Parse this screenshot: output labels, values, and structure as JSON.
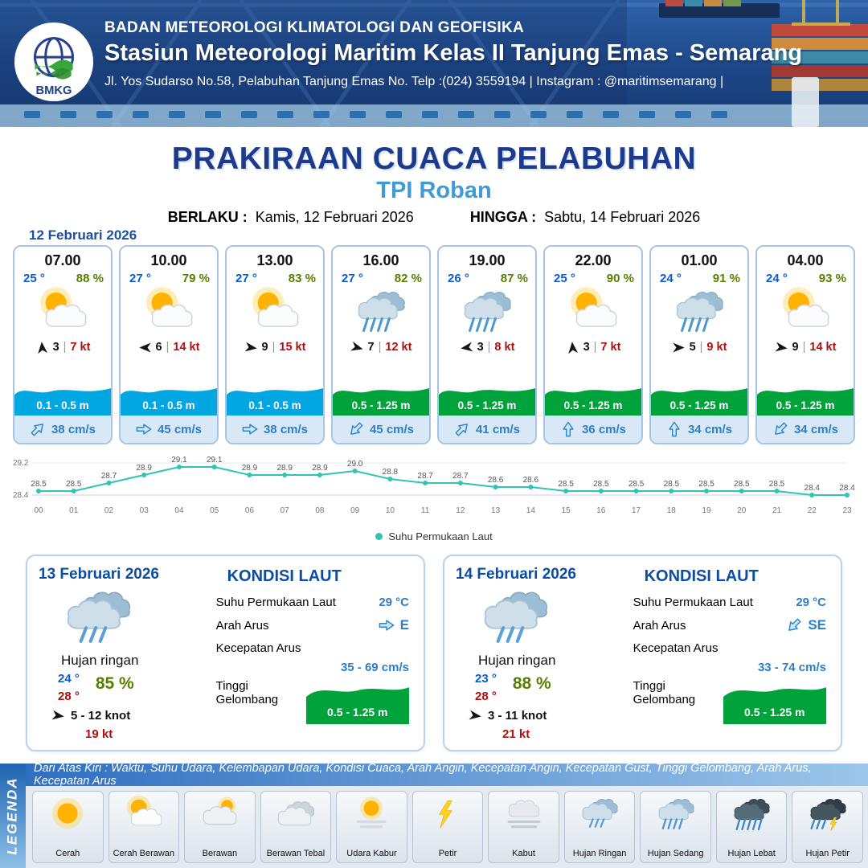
{
  "header": {
    "logo_text": "BMKG",
    "line1": "BADAN METEOROLOGI KLIMATOLOGI DAN GEOFISIKA",
    "line2": "Stasiun Meteorologi Maritim Kelas II Tanjung Emas - Semarang",
    "line3": "Jl. Yos Sudarso No.58, Pelabuhan Tanjung Emas No. Telp :(024) 3559194 | Instagram : @maritimsemarang |"
  },
  "title": {
    "main": "PRAKIRAAN CUACA PELABUHAN",
    "location": "TPI Roban",
    "valid_from_label": "BERLAKU :",
    "valid_from": "Kamis, 12 Februari 2026",
    "valid_to_label": "HINGGA :",
    "valid_to": "Sabtu, 14 Februari 2026"
  },
  "forecast_date": "12 Februari 2026",
  "ui": {
    "separator": "|"
  },
  "forecast_cards": [
    {
      "time": "07.00",
      "temp": "25 °",
      "humidity": "88 %",
      "icon": "cerah-berawan",
      "wind_rot": -95,
      "wind_speed": "3",
      "gust": "7 kt",
      "wave": "0.1 - 0.5 m",
      "wave_color": "#00a7e1",
      "current_rot": -45,
      "current": "38 cm/s"
    },
    {
      "time": "10.00",
      "temp": "27 °",
      "humidity": "79 %",
      "icon": "cerah-berawan",
      "wind_rot": 180,
      "wind_speed": "6",
      "gust": "14 kt",
      "wave": "0.1 - 0.5 m",
      "wave_color": "#00a7e1",
      "current_rot": 0,
      "current": "45 cm/s"
    },
    {
      "time": "13.00",
      "temp": "27 °",
      "humidity": "83 %",
      "icon": "cerah-berawan",
      "wind_rot": 8,
      "wind_speed": "9",
      "gust": "15 kt",
      "wave": "0.1 - 0.5 m",
      "wave_color": "#00a7e1",
      "current_rot": 0,
      "current": "38 cm/s"
    },
    {
      "time": "16.00",
      "temp": "27 °",
      "humidity": "82 %",
      "icon": "hujan-sedang",
      "wind_rot": 15,
      "wind_speed": "7",
      "gust": "12 kt",
      "wave": "0.5 - 1.25 m",
      "wave_color": "#00a23b",
      "current_rot": 135,
      "current": "45 cm/s"
    },
    {
      "time": "19.00",
      "temp": "26 °",
      "humidity": "87 %",
      "icon": "hujan-sedang",
      "wind_rot": 172,
      "wind_speed": "3",
      "gust": "8 kt",
      "wave": "0.5 - 1.25 m",
      "wave_color": "#00a23b",
      "current_rot": -45,
      "current": "41 cm/s"
    },
    {
      "time": "22.00",
      "temp": "25 °",
      "humidity": "90 %",
      "icon": "cerah-berawan",
      "wind_rot": -95,
      "wind_speed": "3",
      "gust": "7 kt",
      "wave": "0.5 - 1.25 m",
      "wave_color": "#00a23b",
      "current_rot": -90,
      "current": "36 cm/s"
    },
    {
      "time": "01.00",
      "temp": "24 °",
      "humidity": "91 %",
      "icon": "hujan-sedang",
      "wind_rot": 0,
      "wind_speed": "5",
      "gust": "9 kt",
      "wave": "0.5 - 1.25 m",
      "wave_color": "#00a23b",
      "current_rot": -90,
      "current": "34 cm/s"
    },
    {
      "time": "04.00",
      "temp": "24 °",
      "humidity": "93 %",
      "icon": "cerah-berawan",
      "wind_rot": 8,
      "wind_speed": "9",
      "gust": "14 kt",
      "wave": "0.5 - 1.25 m",
      "wave_color": "#00a23b",
      "current_rot": 135,
      "current": "34 cm/s"
    }
  ],
  "chart_data": {
    "type": "line",
    "legend_label": "Suhu Permukaan Laut",
    "x": [
      "00",
      "01",
      "02",
      "03",
      "04",
      "05",
      "06",
      "07",
      "08",
      "09",
      "10",
      "11",
      "12",
      "13",
      "14",
      "15",
      "16",
      "17",
      "18",
      "19",
      "20",
      "21",
      "22",
      "23"
    ],
    "values": [
      28.5,
      28.5,
      28.7,
      28.9,
      29.1,
      29.1,
      28.9,
      28.9,
      28.9,
      29.0,
      28.8,
      28.7,
      28.7,
      28.6,
      28.6,
      28.5,
      28.5,
      28.5,
      28.5,
      28.5,
      28.5,
      28.5,
      28.4,
      28.4
    ],
    "ylim": [
      28.4,
      29.2
    ],
    "line_color": "#2ec4b6",
    "grid": false,
    "legend_position": "bottom"
  },
  "daily": [
    {
      "date": "13 Februari 2026",
      "icon": "hujan-ringan",
      "condition": "Hujan ringan",
      "temp_min": "24 °",
      "temp_max": "28 °",
      "humidity": "85 %",
      "wind_rot": 8,
      "wind_range": "5 - 12 knot",
      "gust": "19 kt",
      "sea_title": "KONDISI LAUT",
      "sst_label": "Suhu Permukaan Laut",
      "sst": "29 °C",
      "current_dir_label": "Arah Arus",
      "current_dir": "E",
      "current_rot": 0,
      "current_speed_label": "Kecepatan Arus",
      "current_speed": "35 - 69 cm/s",
      "wave_label": "Tinggi Gelombang",
      "wave": "0.5 - 1.25 m",
      "wave_color": "#00a23b"
    },
    {
      "date": "14 Februari 2026",
      "icon": "hujan-ringan",
      "condition": "Hujan ringan",
      "temp_min": "23 °",
      "temp_max": "28 °",
      "humidity": "88 %",
      "wind_rot": 8,
      "wind_range": "3 - 11 knot",
      "gust": "21 kt",
      "sea_title": "KONDISI LAUT",
      "sst_label": "Suhu Permukaan Laut",
      "sst": "29 °C",
      "current_dir_label": "Arah Arus",
      "current_dir": "SE",
      "current_rot": 135,
      "current_speed_label": "Kecepatan Arus",
      "current_speed": "33 - 74 cm/s",
      "wave_label": "Tinggi Gelombang",
      "wave": "0.5 - 1.25 m",
      "wave_color": "#00a23b"
    }
  ],
  "legend": {
    "vertical_label": "LEGENDA",
    "note": "Dari Atas Kiri : Waktu, Suhu Udara, Kelembapan Udara, Kondisi Cuaca, Arah Angin, Kecepatan Angin, Kecepatan Gust, Tinggi Gelombang, Arah Arus, Kecepatan Arus",
    "items": [
      {
        "label": "Cerah",
        "icon": "cerah"
      },
      {
        "label": "Cerah Berawan",
        "icon": "cerah-berawan"
      },
      {
        "label": "Berawan",
        "icon": "berawan"
      },
      {
        "label": "Berawan Tebal",
        "icon": "berawan-tebal"
      },
      {
        "label": "Udara Kabur",
        "icon": "udara-kabur"
      },
      {
        "label": "Petir",
        "icon": "petir"
      },
      {
        "label": "Kabut",
        "icon": "kabut"
      },
      {
        "label": "Hujan Ringan",
        "icon": "hujan-ringan"
      },
      {
        "label": "Hujan Sedang",
        "icon": "hujan-sedang"
      },
      {
        "label": "Hujan Lebat",
        "icon": "hujan-lebat"
      },
      {
        "label": "Hujan Petir",
        "icon": "hujan-petir"
      }
    ]
  },
  "colors": {
    "title": "#1c3b8d",
    "location": "#3e9bd8",
    "temperature": "#0a5bd3",
    "humidity": "#567f00",
    "gust": "#b50d0d",
    "wave_low": "#00a7e1",
    "wave_mid": "#00a23b",
    "current_text": "#2d7ec6",
    "chart_line": "#2ec4b6"
  }
}
